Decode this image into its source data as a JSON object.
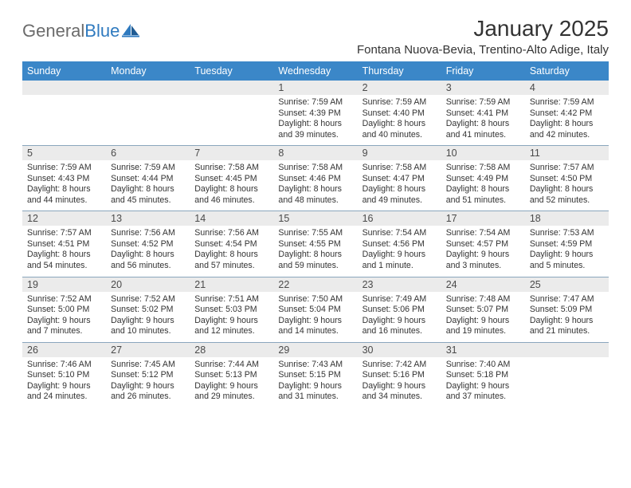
{
  "logo": {
    "textGray": "General",
    "textBlue": "Blue"
  },
  "header": {
    "title": "January 2025",
    "location": "Fontana Nuova-Bevia, Trentino-Alto Adige, Italy"
  },
  "colors": {
    "headerBar": "#3b87c8",
    "dayNumBg": "#ebebeb",
    "weekDivider": "#8aa6bd",
    "logoGray": "#6b6b6b",
    "logoBlue": "#2f7abf",
    "text": "#333333",
    "pageBg": "#ffffff"
  },
  "dayNames": [
    "Sunday",
    "Monday",
    "Tuesday",
    "Wednesday",
    "Thursday",
    "Friday",
    "Saturday"
  ],
  "weeks": [
    [
      {
        "n": "",
        "r": "",
        "s": "",
        "d1": "",
        "d2": ""
      },
      {
        "n": "",
        "r": "",
        "s": "",
        "d1": "",
        "d2": ""
      },
      {
        "n": "",
        "r": "",
        "s": "",
        "d1": "",
        "d2": ""
      },
      {
        "n": "1",
        "r": "Sunrise: 7:59 AM",
        "s": "Sunset: 4:39 PM",
        "d1": "Daylight: 8 hours",
        "d2": "and 39 minutes."
      },
      {
        "n": "2",
        "r": "Sunrise: 7:59 AM",
        "s": "Sunset: 4:40 PM",
        "d1": "Daylight: 8 hours",
        "d2": "and 40 minutes."
      },
      {
        "n": "3",
        "r": "Sunrise: 7:59 AM",
        "s": "Sunset: 4:41 PM",
        "d1": "Daylight: 8 hours",
        "d2": "and 41 minutes."
      },
      {
        "n": "4",
        "r": "Sunrise: 7:59 AM",
        "s": "Sunset: 4:42 PM",
        "d1": "Daylight: 8 hours",
        "d2": "and 42 minutes."
      }
    ],
    [
      {
        "n": "5",
        "r": "Sunrise: 7:59 AM",
        "s": "Sunset: 4:43 PM",
        "d1": "Daylight: 8 hours",
        "d2": "and 44 minutes."
      },
      {
        "n": "6",
        "r": "Sunrise: 7:59 AM",
        "s": "Sunset: 4:44 PM",
        "d1": "Daylight: 8 hours",
        "d2": "and 45 minutes."
      },
      {
        "n": "7",
        "r": "Sunrise: 7:58 AM",
        "s": "Sunset: 4:45 PM",
        "d1": "Daylight: 8 hours",
        "d2": "and 46 minutes."
      },
      {
        "n": "8",
        "r": "Sunrise: 7:58 AM",
        "s": "Sunset: 4:46 PM",
        "d1": "Daylight: 8 hours",
        "d2": "and 48 minutes."
      },
      {
        "n": "9",
        "r": "Sunrise: 7:58 AM",
        "s": "Sunset: 4:47 PM",
        "d1": "Daylight: 8 hours",
        "d2": "and 49 minutes."
      },
      {
        "n": "10",
        "r": "Sunrise: 7:58 AM",
        "s": "Sunset: 4:49 PM",
        "d1": "Daylight: 8 hours",
        "d2": "and 51 minutes."
      },
      {
        "n": "11",
        "r": "Sunrise: 7:57 AM",
        "s": "Sunset: 4:50 PM",
        "d1": "Daylight: 8 hours",
        "d2": "and 52 minutes."
      }
    ],
    [
      {
        "n": "12",
        "r": "Sunrise: 7:57 AM",
        "s": "Sunset: 4:51 PM",
        "d1": "Daylight: 8 hours",
        "d2": "and 54 minutes."
      },
      {
        "n": "13",
        "r": "Sunrise: 7:56 AM",
        "s": "Sunset: 4:52 PM",
        "d1": "Daylight: 8 hours",
        "d2": "and 56 minutes."
      },
      {
        "n": "14",
        "r": "Sunrise: 7:56 AM",
        "s": "Sunset: 4:54 PM",
        "d1": "Daylight: 8 hours",
        "d2": "and 57 minutes."
      },
      {
        "n": "15",
        "r": "Sunrise: 7:55 AM",
        "s": "Sunset: 4:55 PM",
        "d1": "Daylight: 8 hours",
        "d2": "and 59 minutes."
      },
      {
        "n": "16",
        "r": "Sunrise: 7:54 AM",
        "s": "Sunset: 4:56 PM",
        "d1": "Daylight: 9 hours",
        "d2": "and 1 minute."
      },
      {
        "n": "17",
        "r": "Sunrise: 7:54 AM",
        "s": "Sunset: 4:57 PM",
        "d1": "Daylight: 9 hours",
        "d2": "and 3 minutes."
      },
      {
        "n": "18",
        "r": "Sunrise: 7:53 AM",
        "s": "Sunset: 4:59 PM",
        "d1": "Daylight: 9 hours",
        "d2": "and 5 minutes."
      }
    ],
    [
      {
        "n": "19",
        "r": "Sunrise: 7:52 AM",
        "s": "Sunset: 5:00 PM",
        "d1": "Daylight: 9 hours",
        "d2": "and 7 minutes."
      },
      {
        "n": "20",
        "r": "Sunrise: 7:52 AM",
        "s": "Sunset: 5:02 PM",
        "d1": "Daylight: 9 hours",
        "d2": "and 10 minutes."
      },
      {
        "n": "21",
        "r": "Sunrise: 7:51 AM",
        "s": "Sunset: 5:03 PM",
        "d1": "Daylight: 9 hours",
        "d2": "and 12 minutes."
      },
      {
        "n": "22",
        "r": "Sunrise: 7:50 AM",
        "s": "Sunset: 5:04 PM",
        "d1": "Daylight: 9 hours",
        "d2": "and 14 minutes."
      },
      {
        "n": "23",
        "r": "Sunrise: 7:49 AM",
        "s": "Sunset: 5:06 PM",
        "d1": "Daylight: 9 hours",
        "d2": "and 16 minutes."
      },
      {
        "n": "24",
        "r": "Sunrise: 7:48 AM",
        "s": "Sunset: 5:07 PM",
        "d1": "Daylight: 9 hours",
        "d2": "and 19 minutes."
      },
      {
        "n": "25",
        "r": "Sunrise: 7:47 AM",
        "s": "Sunset: 5:09 PM",
        "d1": "Daylight: 9 hours",
        "d2": "and 21 minutes."
      }
    ],
    [
      {
        "n": "26",
        "r": "Sunrise: 7:46 AM",
        "s": "Sunset: 5:10 PM",
        "d1": "Daylight: 9 hours",
        "d2": "and 24 minutes."
      },
      {
        "n": "27",
        "r": "Sunrise: 7:45 AM",
        "s": "Sunset: 5:12 PM",
        "d1": "Daylight: 9 hours",
        "d2": "and 26 minutes."
      },
      {
        "n": "28",
        "r": "Sunrise: 7:44 AM",
        "s": "Sunset: 5:13 PM",
        "d1": "Daylight: 9 hours",
        "d2": "and 29 minutes."
      },
      {
        "n": "29",
        "r": "Sunrise: 7:43 AM",
        "s": "Sunset: 5:15 PM",
        "d1": "Daylight: 9 hours",
        "d2": "and 31 minutes."
      },
      {
        "n": "30",
        "r": "Sunrise: 7:42 AM",
        "s": "Sunset: 5:16 PM",
        "d1": "Daylight: 9 hours",
        "d2": "and 34 minutes."
      },
      {
        "n": "31",
        "r": "Sunrise: 7:40 AM",
        "s": "Sunset: 5:18 PM",
        "d1": "Daylight: 9 hours",
        "d2": "and 37 minutes."
      },
      {
        "n": "",
        "r": "",
        "s": "",
        "d1": "",
        "d2": ""
      }
    ]
  ]
}
